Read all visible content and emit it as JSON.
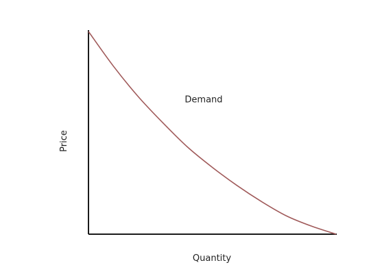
{
  "chart_data": {
    "type": "line",
    "title": "",
    "xlabel": "Quantity",
    "ylabel": "Price",
    "xlim": [
      0,
      1
    ],
    "ylim": [
      0,
      1
    ],
    "grid": false,
    "legend": "none",
    "colors": {
      "axis": "#1a1a1a",
      "curve": "#a05a5a",
      "text": "#222222",
      "background": "#ffffff"
    },
    "series": [
      {
        "name": "Demand",
        "x": [
          0,
          0.1,
          0.2,
          0.3,
          0.4,
          0.5,
          0.6,
          0.7,
          0.8,
          0.9,
          1.0
        ],
        "y": [
          1.0,
          0.83,
          0.68,
          0.55,
          0.43,
          0.33,
          0.24,
          0.16,
          0.09,
          0.04,
          0
        ]
      }
    ],
    "annotations": [
      {
        "text": "Demand",
        "x": 0.4,
        "y": 0.64
      }
    ]
  }
}
